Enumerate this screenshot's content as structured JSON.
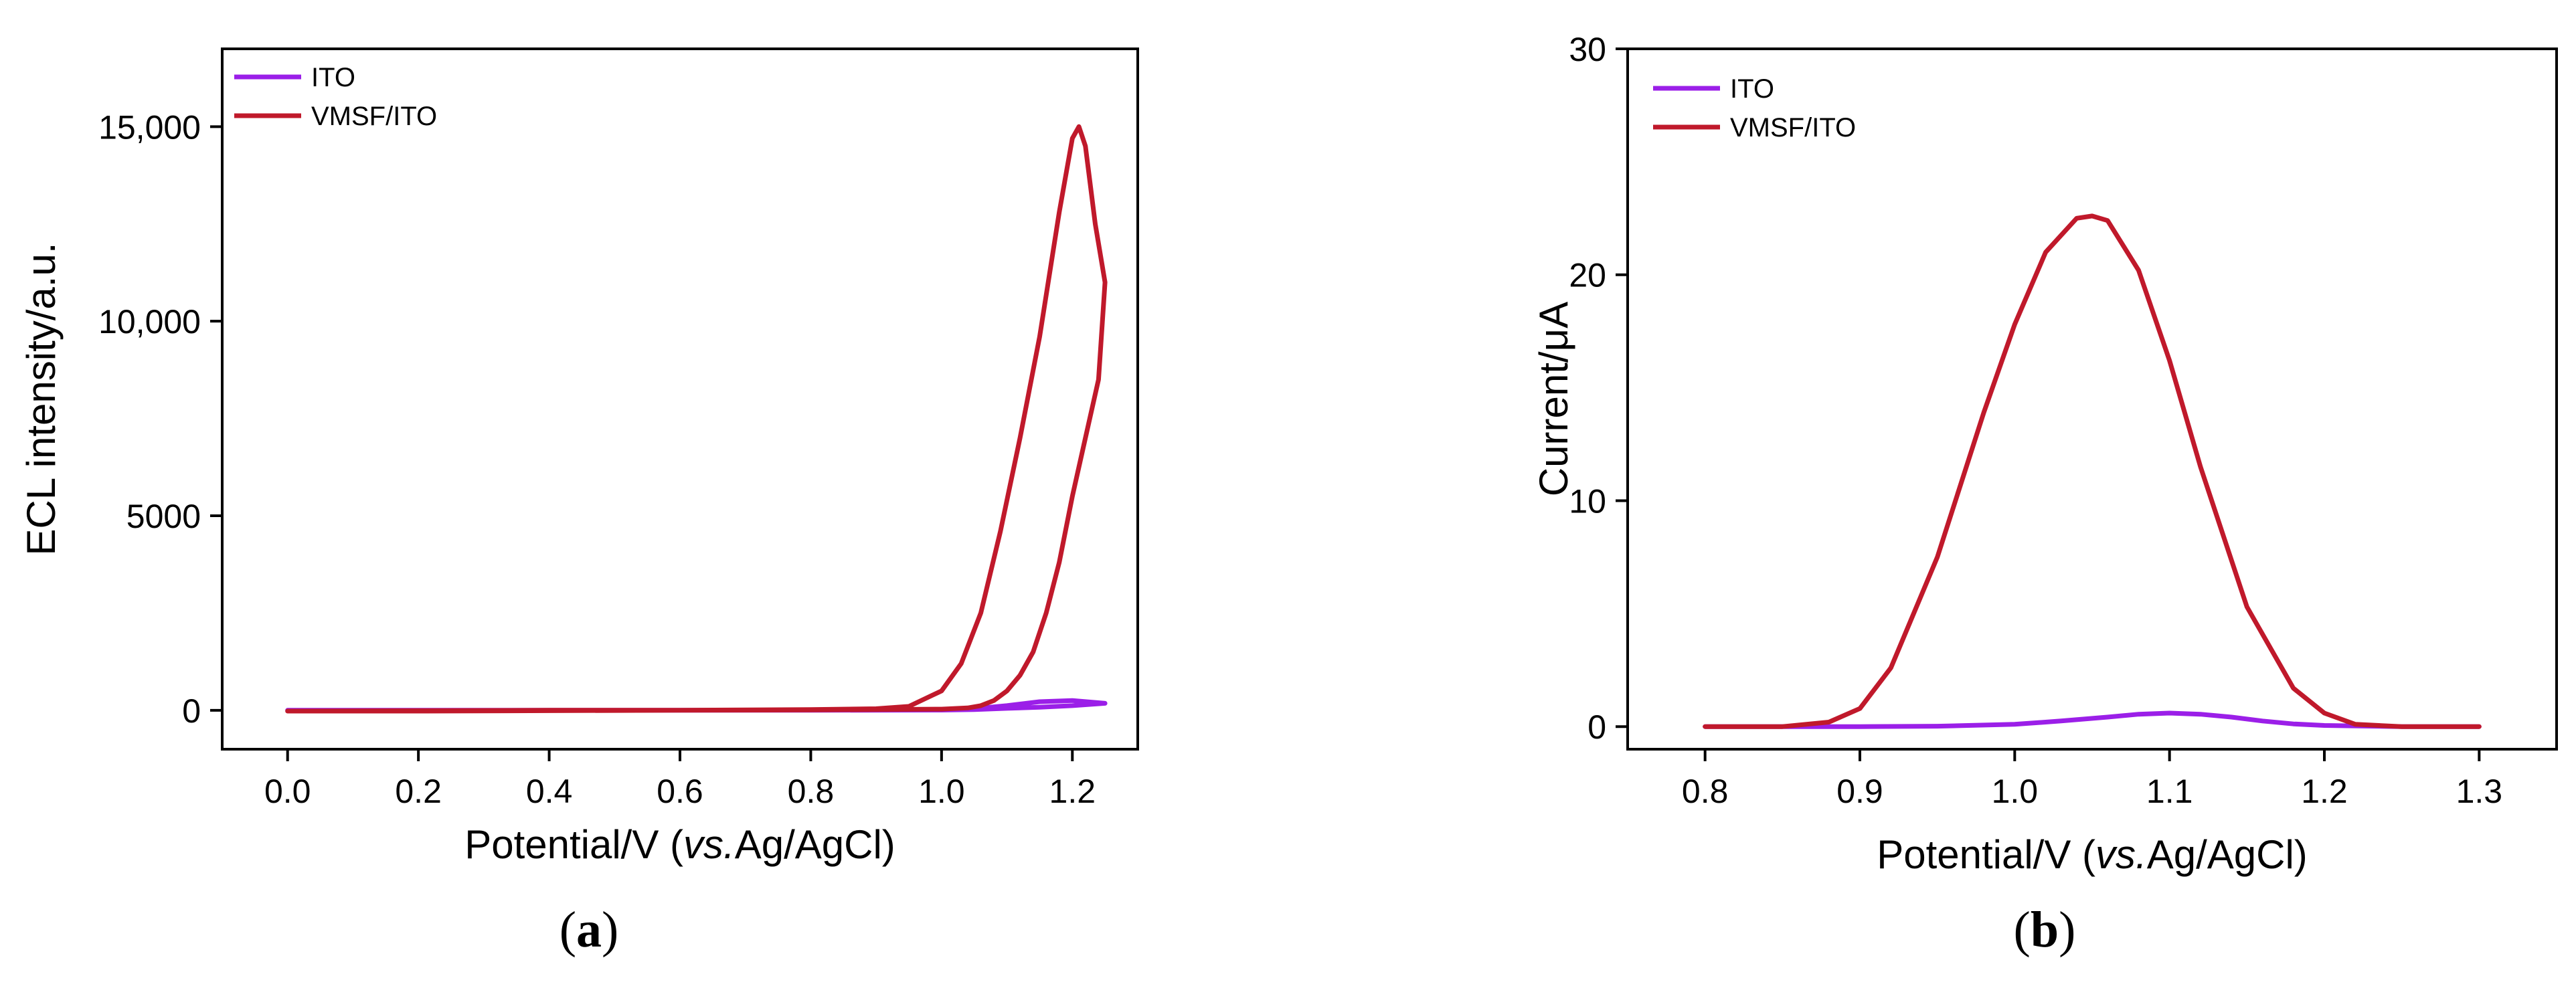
{
  "chart_data": [
    {
      "type": "line",
      "panel": "(a)",
      "panel_label": {
        "open": "(",
        "letter": "a",
        "close": ")"
      },
      "title": "",
      "xlabel": {
        "main": "Potential/V (",
        "italic": "vs.",
        "rest": "Ag/AgCl)"
      },
      "ylabel": "ECL intensity/a.u.",
      "xlim": [
        -0.1,
        1.3
      ],
      "ylim": [
        -1000,
        17000
      ],
      "xticks": [
        0.0,
        0.2,
        0.4,
        0.6,
        0.8,
        1.0,
        1.2
      ],
      "xtick_labels": [
        "0.0",
        "0.2",
        "0.4",
        "0.6",
        "0.8",
        "1.0",
        "1.2"
      ],
      "yticks": [
        0,
        5000,
        10000,
        15000
      ],
      "ytick_labels": [
        "0",
        "5000",
        "10,000",
        "15,000"
      ],
      "legend": {
        "position": "top-left",
        "entries": [
          "ITO",
          "VMSF/ITO"
        ]
      },
      "series": [
        {
          "name": "ITO",
          "color": "#9b1fe8",
          "x": [
            0.0,
            0.2,
            0.4,
            0.6,
            0.8,
            1.0,
            1.05,
            1.1,
            1.15,
            1.2,
            1.25,
            1.2,
            1.15,
            1.1,
            1.05,
            1.0,
            0.8,
            0.6,
            0.4,
            0.2,
            0.0
          ],
          "y": [
            0,
            0,
            0,
            0,
            0,
            10,
            40,
            120,
            220,
            250,
            180,
            120,
            80,
            50,
            20,
            5,
            0,
            0,
            0,
            0,
            0
          ]
        },
        {
          "name": "VMSF/ITO",
          "color": "#c0192b",
          "x": [
            0.0,
            0.2,
            0.4,
            0.6,
            0.8,
            0.9,
            0.95,
            1.0,
            1.03,
            1.06,
            1.09,
            1.12,
            1.15,
            1.18,
            1.2,
            1.21,
            1.22,
            1.235,
            1.25,
            1.24,
            1.22,
            1.2,
            1.18,
            1.16,
            1.14,
            1.12,
            1.1,
            1.08,
            1.06,
            1.04,
            1.0,
            0.9,
            0.8,
            0.6,
            0.4,
            0.2,
            0.0
          ],
          "y": [
            -20,
            -10,
            0,
            0,
            20,
            40,
            100,
            500,
            1200,
            2500,
            4600,
            7000,
            9600,
            12800,
            14700,
            15000,
            14500,
            12500,
            11000,
            8500,
            7000,
            5500,
            3800,
            2500,
            1500,
            900,
            500,
            250,
            120,
            60,
            30,
            20,
            10,
            0,
            -10,
            -20,
            -20
          ]
        }
      ]
    },
    {
      "type": "line",
      "panel": "(b)",
      "panel_label": {
        "open": "(",
        "letter": "b",
        "close": ")"
      },
      "title": "",
      "xlabel": {
        "main": "Potential/V (",
        "italic": "vs.",
        "rest": "Ag/AgCl)"
      },
      "ylabel": "Current/μA",
      "xlim": [
        0.75,
        1.35
      ],
      "ylim": [
        -1,
        30
      ],
      "xticks": [
        0.8,
        0.9,
        1.0,
        1.1,
        1.2,
        1.3
      ],
      "xtick_labels": [
        "0.8",
        "0.9",
        "1.0",
        "1.1",
        "1.2",
        "1.3"
      ],
      "yticks": [
        0,
        10,
        20,
        30
      ],
      "ytick_labels": [
        "0",
        "10",
        "20",
        "30"
      ],
      "legend": {
        "position": "top-left",
        "entries": [
          "ITO",
          "VMSF/ITO"
        ]
      },
      "series": [
        {
          "name": "ITO",
          "color": "#9b1fe8",
          "x": [
            0.8,
            0.85,
            0.9,
            0.95,
            1.0,
            1.03,
            1.06,
            1.08,
            1.1,
            1.12,
            1.14,
            1.16,
            1.18,
            1.2,
            1.25,
            1.3
          ],
          "y": [
            0,
            0,
            0,
            0.02,
            0.1,
            0.25,
            0.42,
            0.55,
            0.6,
            0.55,
            0.42,
            0.25,
            0.12,
            0.05,
            0,
            0
          ]
        },
        {
          "name": "VMSF/ITO",
          "color": "#c0192b",
          "x": [
            0.8,
            0.85,
            0.88,
            0.9,
            0.92,
            0.95,
            0.98,
            1.0,
            1.02,
            1.04,
            1.05,
            1.06,
            1.08,
            1.1,
            1.12,
            1.15,
            1.18,
            1.2,
            1.22,
            1.25,
            1.3
          ],
          "y": [
            0,
            0,
            0.2,
            0.8,
            2.6,
            7.5,
            13.9,
            17.8,
            21.0,
            22.5,
            22.6,
            22.4,
            20.2,
            16.2,
            11.5,
            5.3,
            1.7,
            0.6,
            0.1,
            0,
            0
          ]
        }
      ]
    }
  ]
}
